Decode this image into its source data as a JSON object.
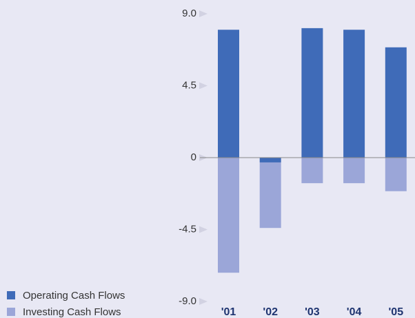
{
  "chart_data": {
    "type": "bar",
    "stacked": true,
    "categories": [
      "'01",
      "'02",
      "'03",
      "'04",
      "'05"
    ],
    "series": [
      {
        "name": "Operating Cash Flows",
        "color": "#3f6bb8",
        "values": [
          8.0,
          -0.3,
          8.1,
          8.0,
          6.9
        ]
      },
      {
        "name": "Investing Cash Flows",
        "color": "#9ba6d8",
        "values": [
          -7.2,
          -4.1,
          -1.6,
          -1.6,
          -2.1
        ]
      }
    ],
    "ylim": [
      -9,
      9
    ],
    "yticks": [
      {
        "value": 9,
        "label": "9.0"
      },
      4.5,
      0,
      -4.5,
      {
        "value": -9,
        "label": "-9.0"
      }
    ],
    "grid": false,
    "legend": "bottom-left"
  }
}
